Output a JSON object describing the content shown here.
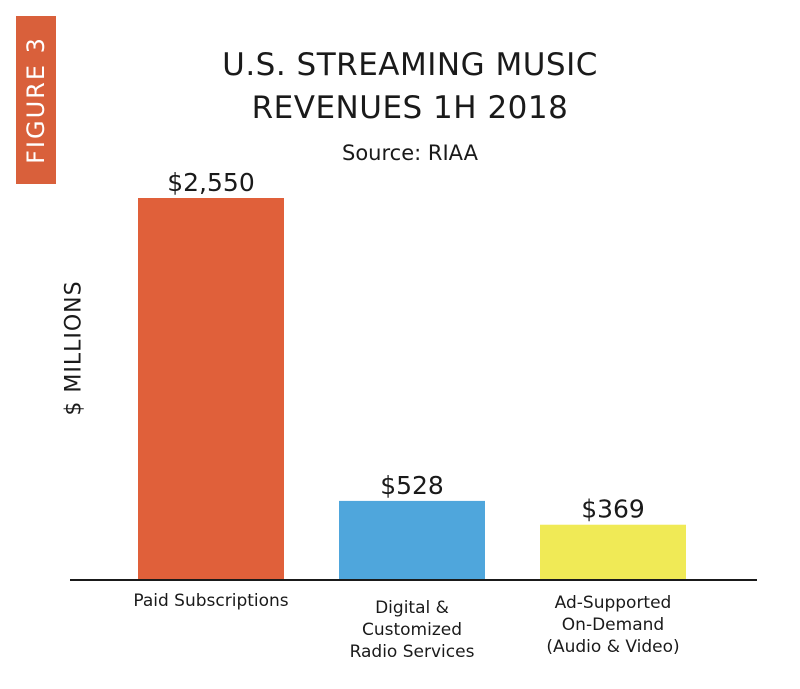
{
  "figure_label": "FIGURE 3",
  "chart_data": {
    "type": "bar",
    "title_lines": [
      "U.S. STREAMING MUSIC",
      "REVENUES 1H 2018"
    ],
    "subtitle": "Source: RIAA",
    "ylabel": "$ MILLIONS",
    "xlabel": "",
    "categories": [
      "Paid Subscriptions",
      "Digital &\nCustomized\nRadio Services",
      "Ad-Supported\nOn-Demand\n(Audio & Video)"
    ],
    "values": [
      2550,
      528,
      369
    ],
    "value_labels": [
      "$2,550",
      "$528",
      "$369"
    ],
    "colors": [
      "#e0603a",
      "#4fa6dc",
      "#f0ea56"
    ],
    "ylim": [
      0,
      2550
    ],
    "grid": false,
    "legend": "none"
  }
}
